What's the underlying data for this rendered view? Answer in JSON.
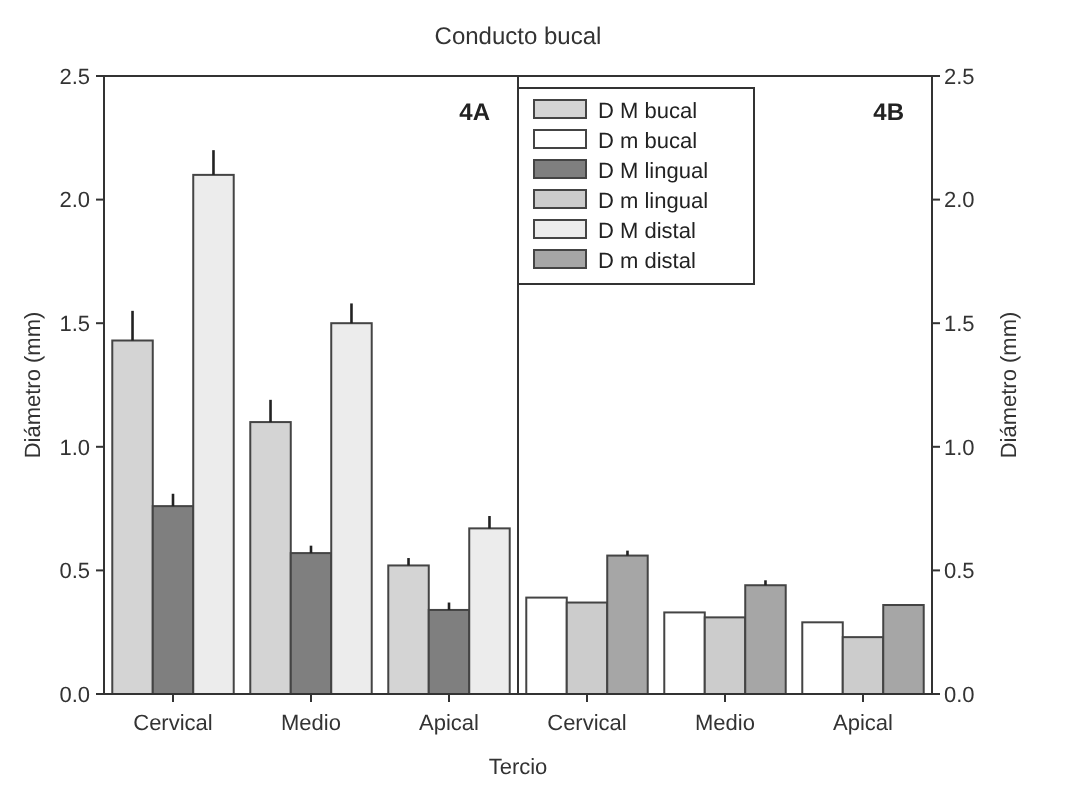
{
  "chart_data": {
    "type": "bar",
    "title": "Conducto bucal",
    "xlabel": "Tercio",
    "ylabel": "Diámetro (mm)",
    "y2label": "Diámetro (mm)",
    "categories": [
      "Cervical",
      "Medio",
      "Apical",
      "Cervical",
      "Medio",
      "Apical"
    ],
    "series": [
      {
        "name": "D M bucal",
        "color": "#d4d4d4",
        "values": [
          1.43,
          1.1,
          0.52,
          null,
          null,
          null
        ],
        "errors": [
          [
            1.43,
            1.55
          ],
          [
            1.1,
            1.19
          ],
          [
            0.52,
            0.55
          ],
          null,
          null,
          null
        ]
      },
      {
        "name": "D m bucal",
        "color": "#ffffff",
        "values": [
          null,
          null,
          null,
          0.39,
          0.33,
          0.29
        ]
      },
      {
        "name": "D M lingual",
        "color": "#7f7f7f",
        "values": [
          0.76,
          0.57,
          0.34,
          null,
          null,
          null
        ],
        "errors": [
          [
            0.76,
            0.81
          ],
          [
            0.57,
            0.6
          ],
          [
            0.34,
            0.37
          ],
          null,
          null,
          null
        ]
      },
      {
        "name": "D m lingual",
        "color": "#cccccc",
        "values": [
          null,
          null,
          null,
          0.37,
          0.31,
          0.23
        ]
      },
      {
        "name": "D M distal",
        "color": "#ececec",
        "values": [
          2.1,
          1.5,
          0.67,
          null,
          null,
          null
        ],
        "errors": [
          [
            2.1,
            2.2
          ],
          [
            1.5,
            1.58
          ],
          [
            0.67,
            0.72
          ],
          null,
          null,
          null
        ]
      },
      {
        "name": "D m distal",
        "color": "#a6a6a6",
        "values": [
          null,
          null,
          null,
          0.56,
          0.44,
          0.36
        ],
        "errors": [
          null,
          null,
          null,
          [
            0.56,
            0.58
          ],
          [
            0.44,
            0.46
          ],
          null
        ]
      }
    ],
    "ylim": [
      0,
      2.5
    ],
    "yticks": [
      {
        "value": 0,
        "label": "0.0"
      },
      {
        "value": 0.5,
        "label": "0.5"
      },
      {
        "value": 1,
        "label": "1.0"
      },
      {
        "value": 1.5,
        "label": "1.5"
      },
      {
        "value": 2,
        "label": "2.0"
      },
      {
        "value": 2.5,
        "label": "2.5"
      }
    ],
    "y2lim": [
      0,
      2.5
    ],
    "y2ticks": [
      {
        "value": 0,
        "label": "0.0"
      },
      {
        "value": 0.5,
        "label": "0.5"
      },
      {
        "value": 1,
        "label": "1.0"
      },
      {
        "value": 1.5,
        "label": "1.5"
      },
      {
        "value": 2,
        "label": "2.0"
      },
      {
        "value": 2.5,
        "label": "2.5"
      }
    ],
    "annotations": [
      "4A",
      "4B"
    ],
    "legend": "top"
  }
}
